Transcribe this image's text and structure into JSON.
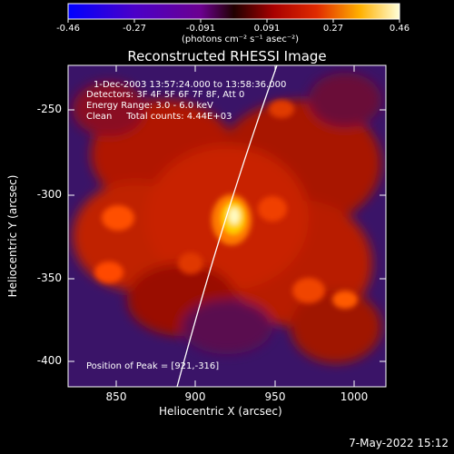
{
  "colorbar": {
    "ticks": [
      "-0.46",
      "-0.27",
      "-0.091",
      "0.091",
      "0.27",
      "0.46"
    ],
    "units": "(photons cm⁻² s⁻¹ asec⁻²)"
  },
  "title": "Reconstructed RHESSI Image",
  "annotations": {
    "time": "1-Dec-2003 13:57:24.000 to 13:58:36.000",
    "detectors": "Detectors: 3F 4F 5F 6F 7F 8F, Att 0",
    "energy": "Energy Range: 3.0 - 6.0 keV",
    "clean": "Clean     Total counts: 4.44E+03",
    "peak": "Position of Peak = [921,-316]"
  },
  "axes": {
    "xlabel": "Heliocentric X (arcsec)",
    "ylabel": "Heliocentric Y (arcsec)",
    "xticks": [
      "850",
      "900",
      "950",
      "1000"
    ],
    "yticks": [
      "-250",
      "-300",
      "-350",
      "-400"
    ]
  },
  "datestamp": "7-May-2022 15:12",
  "colors": {
    "background": "#000000",
    "limb": "#ffffff"
  }
}
